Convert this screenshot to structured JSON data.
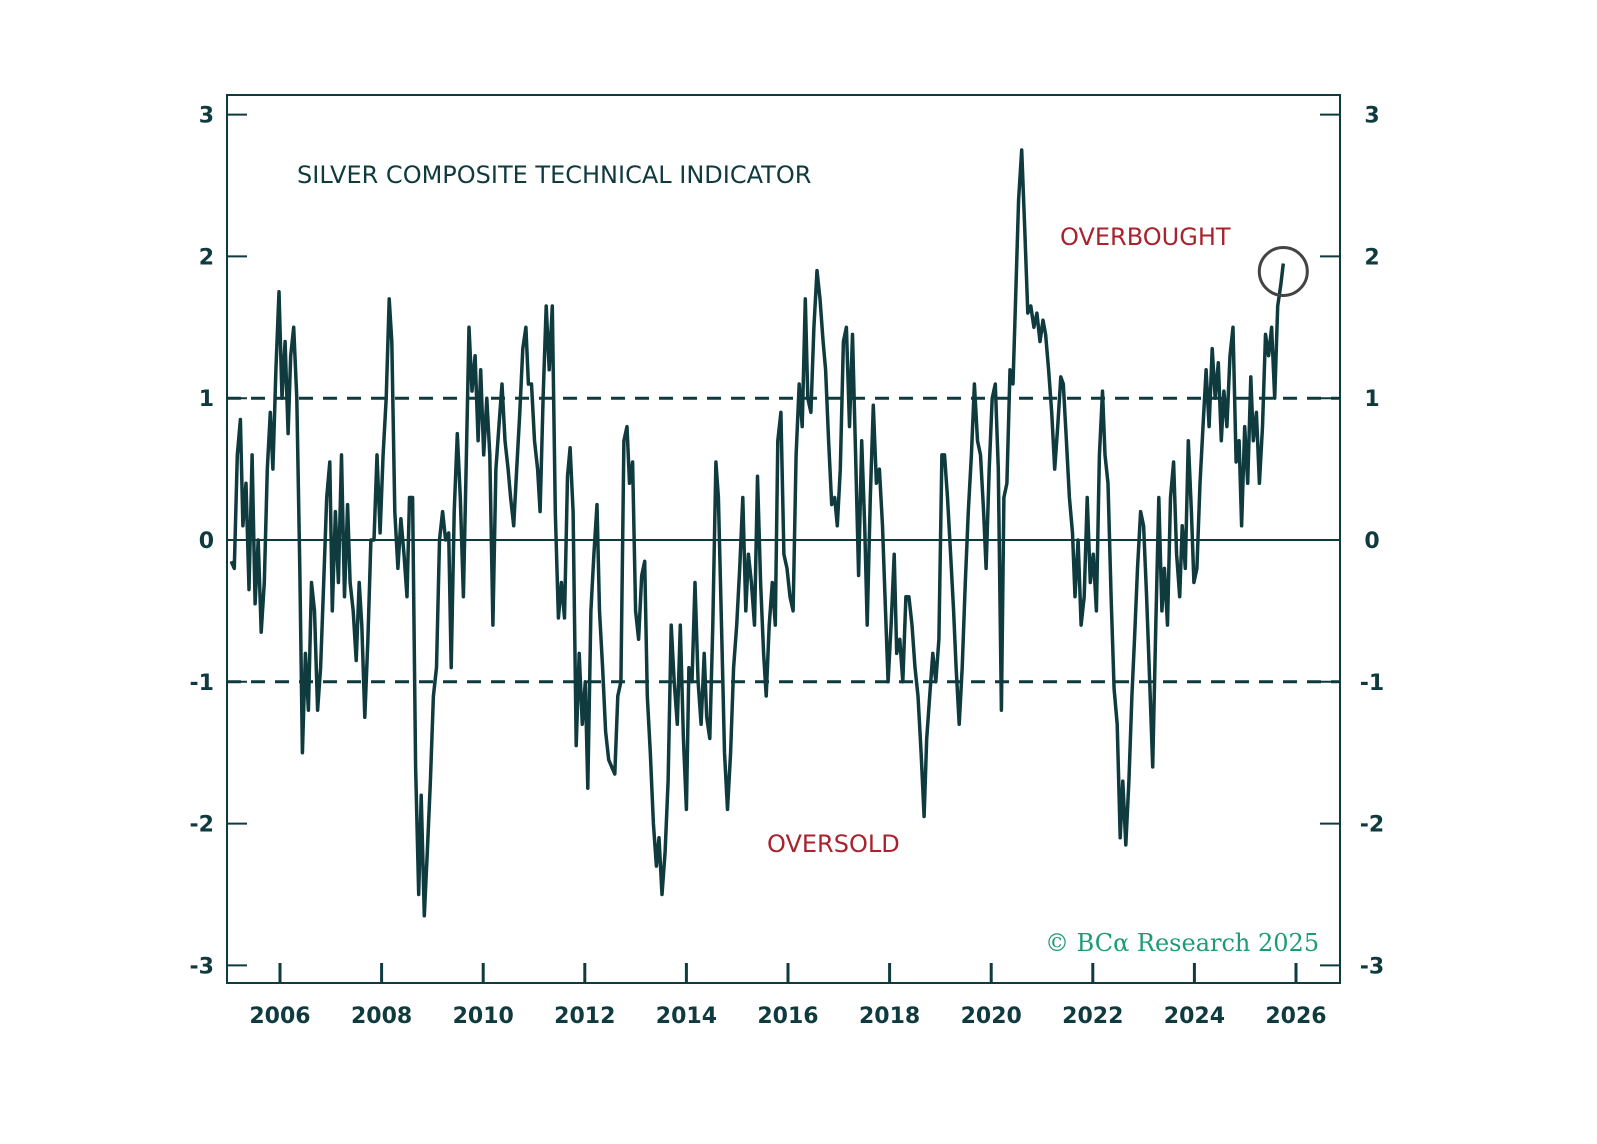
{
  "chart_data": {
    "type": "line",
    "title": "SILVER COMPOSITE TECHNICAL INDICATOR",
    "xlabel": "",
    "ylabel": "",
    "xlim": [
      2005,
      2026.8
    ],
    "ylim": [
      -3.2,
      3.2
    ],
    "x_ticks": [
      "2006",
      "2008",
      "2010",
      "2012",
      "2014",
      "2016",
      "2018",
      "2020",
      "2022",
      "2024",
      "2026"
    ],
    "y_ticks": [
      "3",
      "2",
      "1",
      "0",
      "-1",
      "-2",
      "-3"
    ],
    "y_axis_both_sides": true,
    "grid": false,
    "reference_lines": [
      {
        "value": 1,
        "style": "dashed"
      },
      {
        "value": 0,
        "style": "solid"
      },
      {
        "value": -1,
        "style": "dashed"
      }
    ],
    "annotations": [
      {
        "text": "OVERBOUGHT",
        "color": "#a8232d"
      },
      {
        "text": "OVERSOLD",
        "color": "#a8232d"
      },
      {
        "type": "circle",
        "target_x": 2025.75,
        "target_y": 1.95
      }
    ],
    "source": "© BCα Research 2025",
    "colors": {
      "line": "#0f3a3e",
      "axis": "#0f3a3e",
      "annotation": "#a8232d",
      "source": "#1c9c74",
      "circle": "#444444"
    },
    "series": [
      {
        "x": [
          2005.04,
          2005.1,
          2005.16,
          2005.22,
          2005.27,
          2005.33,
          2005.39,
          2005.45,
          2005.51,
          2005.57,
          2005.63,
          2005.69,
          2005.75,
          2005.81,
          2005.86,
          2005.92,
          2005.98,
          2006.04,
          2006.1,
          2006.16,
          2006.21,
          2006.27,
          2006.33,
          2006.39,
          2006.44,
          2006.5,
          2006.56,
          2006.62,
          2006.68,
          2006.74,
          2006.8,
          2006.86,
          2006.92,
          2006.98,
          2007.03,
          2007.09,
          2007.15,
          2007.21,
          2007.27,
          2007.33,
          2007.38,
          2007.44,
          2007.5,
          2007.56,
          2007.61,
          2007.67,
          2007.73,
          2007.79,
          2007.85,
          2007.91,
          2007.97,
          2008.03,
          2008.09,
          2008.15,
          2008.2,
          2008.26,
          2008.32,
          2008.38,
          2008.44,
          2008.5,
          2008.55,
          2008.61,
          2008.67,
          2008.73,
          2008.78,
          2008.84,
          2008.9,
          2008.96,
          2009.02,
          2009.08,
          2009.14,
          2009.2,
          2009.26,
          2009.32,
          2009.37,
          2009.43,
          2009.49,
          2009.55,
          2009.61,
          2009.67,
          2009.72,
          2009.78,
          2009.84,
          2009.9,
          2009.95,
          2010.01,
          2010.07,
          2010.13,
          2010.19,
          2010.25,
          2010.31,
          2010.37,
          2010.43,
          2010.49,
          2010.54,
          2010.6,
          2010.66,
          2010.72,
          2010.78,
          2010.84,
          2010.89,
          2010.95,
          2011.01,
          2011.07,
          2011.12,
          2011.18,
          2011.24,
          2011.3,
          2011.36,
          2011.42,
          2011.48,
          2011.54,
          2011.6,
          2011.66,
          2011.71,
          2011.77,
          2011.83,
          2011.89,
          2011.95,
          2012.01,
          2012.06,
          2012.12,
          2012.18,
          2012.24,
          2012.29,
          2012.35,
          2012.41,
          2012.47,
          2012.53,
          2012.59,
          2012.65,
          2012.71,
          2012.77,
          2012.83,
          2012.88,
          2012.94,
          2013.0,
          2013.06,
          2013.12,
          2013.18,
          2013.23,
          2013.29,
          2013.35,
          2013.41,
          2013.46,
          2013.52,
          2013.58,
          2013.64,
          2013.7,
          2013.76,
          2013.82,
          2013.88,
          2013.94,
          2014.0,
          2014.05,
          2014.11,
          2014.17,
          2014.23,
          2014.29,
          2014.35,
          2014.4,
          2014.46,
          2014.52,
          2014.58,
          2014.63,
          2014.69,
          2014.75,
          2014.81,
          2014.87,
          2014.93,
          2014.99,
          2015.05,
          2015.11,
          2015.17,
          2015.22,
          2015.28,
          2015.34,
          2015.4,
          2015.46,
          2015.52,
          2015.57,
          2015.63,
          2015.69,
          2015.75,
          2015.8,
          2015.86,
          2015.92,
          2015.98,
          2016.04,
          2016.1,
          2016.16,
          2016.22,
          2016.28,
          2016.34,
          2016.39,
          2016.45,
          2016.51,
          2016.57,
          2016.63,
          2016.69,
          2016.74,
          2016.8,
          2016.86,
          2016.92,
          2016.97,
          2017.03,
          2017.09,
          2017.15,
          2017.21,
          2017.27,
          2017.33,
          2017.39,
          2017.45,
          2017.51,
          2017.56,
          2017.62,
          2017.68,
          2017.74,
          2017.8,
          2017.86,
          2017.91,
          2017.97,
          2018.03,
          2018.09,
          2018.14,
          2018.2,
          2018.26,
          2018.32,
          2018.38,
          2018.44,
          2018.5,
          2018.56,
          2018.62,
          2018.68,
          2018.73,
          2018.79,
          2018.85,
          2018.91,
          2018.97,
          2019.03,
          2019.08,
          2019.14,
          2019.2,
          2019.26,
          2019.31,
          2019.37,
          2019.43,
          2019.49,
          2019.55,
          2019.61,
          2019.67,
          2019.73,
          2019.79,
          2019.85,
          2019.9,
          2019.96,
          2020.02,
          2020.08,
          2020.14,
          2020.2,
          2020.25,
          2020.31,
          2020.37,
          2020.43,
          2020.48,
          2020.54,
          2020.6,
          2020.66,
          2020.72,
          2020.78,
          2020.84,
          2020.9,
          2020.96,
          2021.02,
          2021.07,
          2021.13,
          2021.19,
          2021.25,
          2021.31,
          2021.37,
          2021.42,
          2021.48,
          2021.54,
          2021.6,
          2021.65,
          2021.71,
          2021.77,
          2021.83,
          2021.89,
          2021.95,
          2022.01,
          2022.07,
          2022.13,
          2022.19,
          2022.24,
          2022.3,
          2022.36,
          2022.42,
          2022.48,
          2022.54,
          2022.59,
          2022.65,
          2022.71,
          2022.77,
          2022.82,
          2022.88,
          2022.94,
          2023.0,
          2023.06,
          2023.12,
          2023.18,
          2023.24,
          2023.3,
          2023.36,
          2023.41,
          2023.47,
          2023.53,
          2023.59,
          2023.65,
          2023.71,
          2023.76,
          2023.82,
          2023.88,
          2023.94,
          2023.99,
          2024.05,
          2024.11,
          2024.17,
          2024.23,
          2024.29,
          2024.35,
          2024.41,
          2024.47,
          2024.53,
          2024.58,
          2024.64,
          2024.7,
          2024.76,
          2024.82,
          2024.88,
          2024.93,
          2024.99,
          2025.05,
          2025.11,
          2025.16,
          2025.22,
          2025.28,
          2025.34,
          2025.4,
          2025.46,
          2025.52,
          2025.58,
          2025.64,
          2025.7,
          2025.75
        ],
        "values": [
          -0.15,
          -0.2,
          0.6,
          0.85,
          0.1,
          0.4,
          -0.35,
          0.6,
          -0.45,
          0.0,
          -0.65,
          -0.3,
          0.5,
          0.9,
          0.5,
          1.2,
          1.75,
          1.0,
          1.4,
          0.75,
          1.3,
          1.5,
          1.0,
          -0.2,
          -1.5,
          -0.8,
          -1.2,
          -0.3,
          -0.5,
          -1.2,
          -0.9,
          -0.3,
          0.3,
          0.55,
          -0.5,
          0.2,
          -0.3,
          0.6,
          -0.4,
          0.25,
          -0.3,
          -0.5,
          -0.85,
          -0.3,
          -0.6,
          -1.25,
          -0.7,
          0.0,
          0.0,
          0.6,
          0.05,
          0.6,
          1.0,
          1.7,
          1.4,
          0.2,
          -0.2,
          0.15,
          -0.1,
          -0.4,
          0.3,
          0.3,
          -1.6,
          -2.5,
          -1.8,
          -2.65,
          -2.2,
          -1.7,
          -1.1,
          -0.9,
          0.0,
          0.2,
          0.0,
          0.05,
          -0.9,
          0.2,
          0.75,
          0.3,
          -0.4,
          0.6,
          1.5,
          1.05,
          1.3,
          0.7,
          1.2,
          0.6,
          1.0,
          0.6,
          -0.6,
          0.5,
          0.8,
          1.1,
          0.7,
          0.5,
          0.3,
          0.1,
          0.5,
          0.9,
          1.35,
          1.5,
          1.1,
          1.1,
          0.7,
          0.5,
          0.2,
          1.0,
          1.65,
          1.2,
          1.65,
          0.2,
          -0.55,
          -0.3,
          -0.55,
          0.45,
          0.65,
          0.2,
          -1.45,
          -0.8,
          -1.3,
          -1.0,
          -1.75,
          -0.5,
          -0.1,
          0.25,
          -0.5,
          -0.9,
          -1.35,
          -1.55,
          -1.6,
          -1.65,
          -1.1,
          -1.0,
          0.7,
          0.8,
          0.4,
          0.55,
          -0.5,
          -0.7,
          -0.25,
          -0.15,
          -1.1,
          -1.5,
          -2.0,
          -2.3,
          -2.1,
          -2.5,
          -2.2,
          -1.7,
          -0.6,
          -1.0,
          -1.3,
          -0.6,
          -1.4,
          -1.9,
          -0.9,
          -1.0,
          -0.3,
          -1.0,
          -1.3,
          -0.8,
          -1.25,
          -1.4,
          -0.6,
          0.55,
          0.3,
          -0.6,
          -1.5,
          -1.9,
          -1.5,
          -0.9,
          -0.6,
          -0.2,
          0.3,
          -0.5,
          -0.1,
          -0.3,
          -0.6,
          0.45,
          -0.3,
          -0.8,
          -1.1,
          -0.6,
          -0.3,
          -0.6,
          0.7,
          0.9,
          -0.1,
          -0.2,
          -0.4,
          -0.5,
          0.6,
          1.1,
          0.8,
          1.7,
          1.0,
          0.9,
          1.5,
          1.9,
          1.7,
          1.4,
          1.2,
          0.7,
          0.25,
          0.3,
          0.1,
          0.5,
          1.4,
          1.5,
          0.8,
          1.45,
          0.6,
          -0.25,
          0.7,
          0.1,
          -0.6,
          0.3,
          0.95,
          0.4,
          0.5,
          0.1,
          -0.4,
          -1.0,
          -0.6,
          -0.1,
          -0.8,
          -0.7,
          -1.0,
          -0.4,
          -0.4,
          -0.6,
          -0.9,
          -1.1,
          -1.5,
          -1.95,
          -1.4,
          -1.1,
          -0.8,
          -1.0,
          -0.7,
          0.6,
          0.6,
          0.3,
          -0.1,
          -0.5,
          -0.9,
          -1.3,
          -0.9,
          -0.3,
          0.2,
          0.6,
          1.1,
          0.7,
          0.6,
          0.2,
          -0.2,
          0.5,
          1.0,
          1.1,
          0.5,
          -1.2,
          0.3,
          0.4,
          1.2,
          1.1,
          1.7,
          2.4,
          2.75,
          2.2,
          1.6,
          1.65,
          1.5,
          1.6,
          1.4,
          1.55,
          1.45,
          1.2,
          0.9,
          0.5,
          0.8,
          1.15,
          1.1,
          0.7,
          0.3,
          0.05,
          -0.4,
          0.0,
          -0.6,
          -0.4,
          0.3,
          -0.3,
          -0.1,
          -0.5,
          0.6,
          1.05,
          0.6,
          0.4,
          -0.4,
          -1.05,
          -1.3,
          -2.1,
          -1.7,
          -2.15,
          -1.7,
          -1.1,
          -0.7,
          -0.2,
          0.2,
          0.1,
          -0.4,
          -1.0,
          -1.6,
          -0.6,
          0.3,
          -0.5,
          -0.2,
          -0.6,
          0.3,
          0.55,
          -0.1,
          -0.4,
          0.1,
          -0.2,
          0.7,
          0.2,
          -0.3,
          -0.2,
          0.4,
          0.8,
          1.2,
          0.8,
          1.35,
          1.0,
          1.25,
          0.7,
          1.05,
          0.8,
          1.3,
          1.5,
          0.55,
          0.7,
          0.1,
          0.8,
          0.4,
          1.15,
          0.7,
          0.9,
          0.4,
          0.8,
          1.45,
          1.3,
          1.5,
          1.0,
          1.65,
          1.8,
          1.95
        ]
      }
    ]
  }
}
